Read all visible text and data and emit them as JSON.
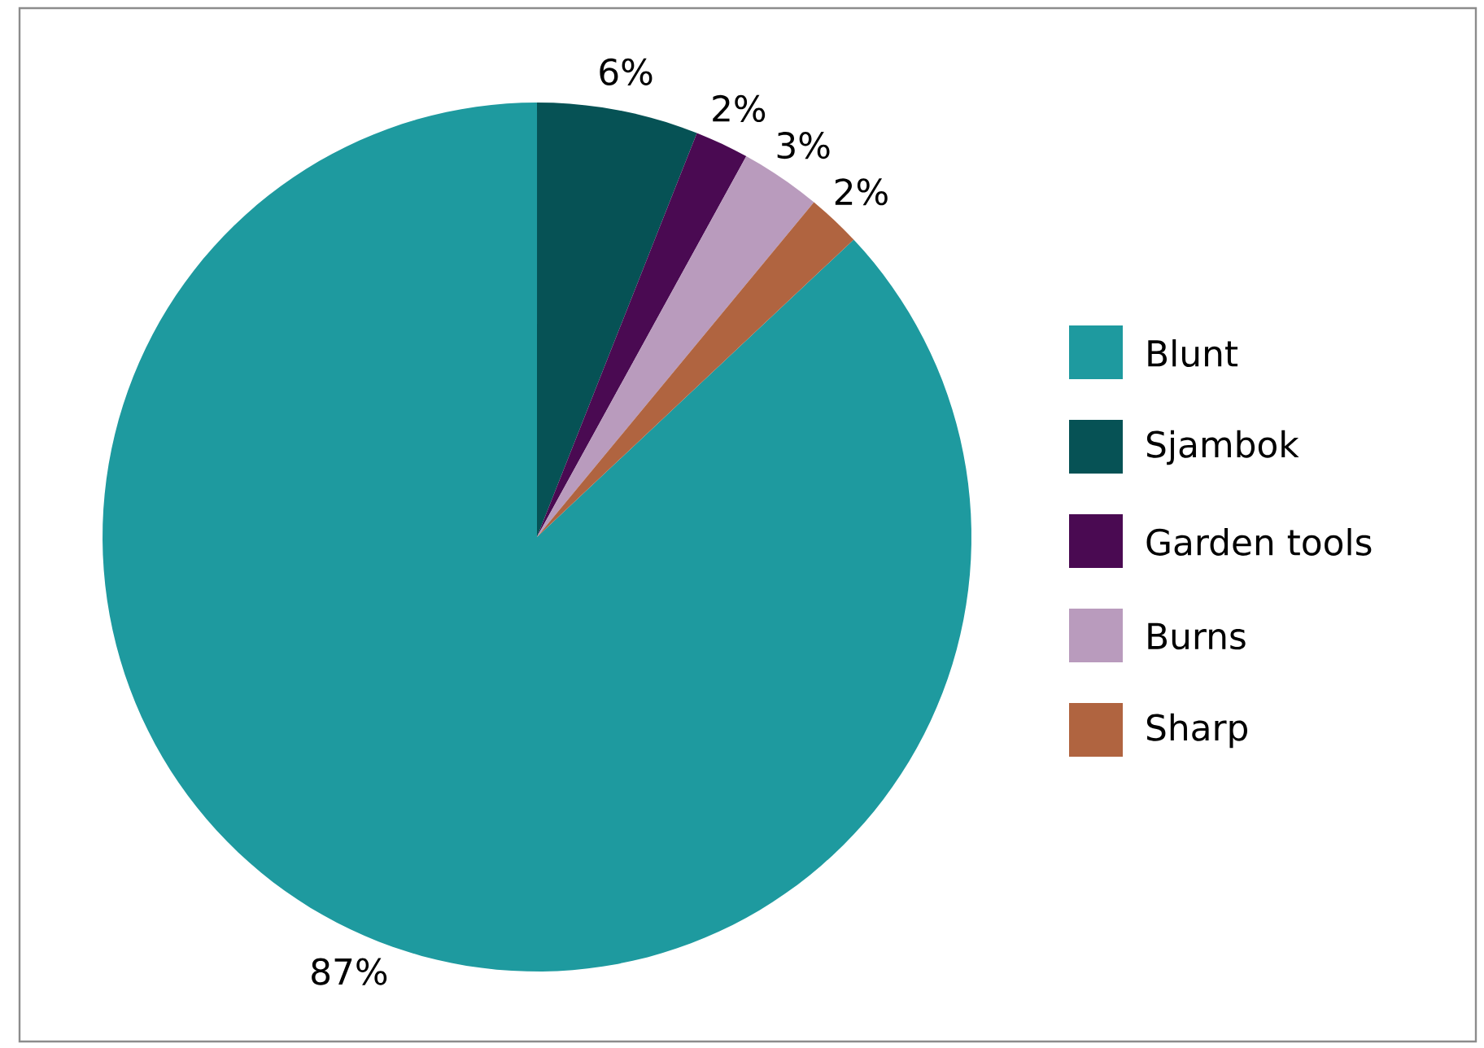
{
  "chart_data": {
    "type": "pie",
    "categories": [
      "Blunt",
      "Sjambok",
      "Garden tools",
      "Burns",
      "Sharp"
    ],
    "values": [
      87,
      6,
      2,
      3,
      2
    ],
    "value_labels": [
      "87%",
      "6%",
      "2%",
      "3%",
      "2%"
    ],
    "colors": [
      "#1e9a9f",
      "#065255",
      "#4a0a52",
      "#b99bbd",
      "#b06440"
    ],
    "legend": "right"
  }
}
